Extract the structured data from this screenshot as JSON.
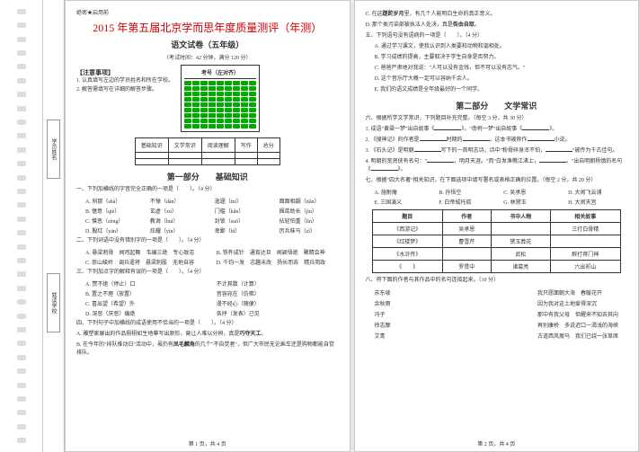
{
  "binding": {
    "holes": 32
  },
  "info": {
    "name_label": "学员姓名",
    "school_label": "就读学校"
  },
  "header": {
    "secret": "绝密★启用前",
    "title": "2015 年第五届北京学而思年度质量测评（年测）",
    "subtitle": "语文试卷（五年级）",
    "meta": "（考试时间：42 分钟，满分 120 分）"
  },
  "notice": {
    "heading": "【注意事项】",
    "lines": [
      "1. 认真填写左边的学员姓名和所在学校。",
      "2. 解答需填写在详细的解答步骤。"
    ]
  },
  "exam_no": {
    "title": "考号（左对齐）"
  },
  "score": {
    "rows": [
      [
        "基础知识",
        "文学常识",
        "阅读理解",
        "写作",
        "总分"
      ],
      [
        "",
        "",
        "",
        "",
        ""
      ],
      [
        "",
        "",
        "",
        "",
        ""
      ]
    ]
  },
  "p1": {
    "title": "第一部分　　基础知识",
    "q1": {
      "stem": "一、下列加横线的字音完全正确的一项是（　　）。（4 分）",
      "opts": [
        "A. 刹那（shà）",
        "不惮（dàn）",
        "迤逦（mí）",
        "面面相觑（tiǎn）",
        "B. 惬意（qiè）",
        "玄虚（xū）",
        "门槛（kǎn）",
        "揠苗助长（jìn）",
        "C. 憎恶（zèng）",
        "教诲（huì）",
        "封锁（suǒ）",
        "拈轻怕重（lín）",
        "D. 殷红（yān）",
        "炫耀（yìn）",
        "卑鄙（bǐ）",
        "厉兵秣马（zǐ）"
      ]
    },
    "q2": {
      "stem": "二、下列词语中没有错别字的一项是（　　）。（4 分）",
      "opts": [
        "A. 悬梁刺骨　闻鸡起舞　韦编三绝　专心致志",
        "B. 铁杵成针　通宵达旦　闻颖悟绝　聚精会神",
        "C. 崇山峻岭　调兵遣将　悬梁刺股　无地自容",
        "D. 千钧一发　志趣未改　扬长而去　精兵简政"
      ]
    },
    "q3": {
      "stem": "三、下列加点字的解释有误的一项是（　　）。（4 分）",
      "opts": [
        "A. 赞不绝（停止）口",
        "不计其数（计算）",
        "B. 置之不理（放置）",
        "音容宛在（仿佛）",
        "C. 喜出望（希望）外",
        "漫不经心（随便）",
        "D. 深恶（厌恶）痛绝",
        "各抒（发表）己见"
      ]
    },
    "q4": {
      "stem": "四、下列句子中加横线的成语使用不恰当的一项是（　　）。（4 分）",
      "opts": [
        "A. 雕塑家展出的作品栩栩如生地摹写出原形，竟让人难以分辨，真是<b>巧夺天工</b>。",
        "B. 在今年的\"排队推动日\"活动中，虽仍有<b>凤毛麟角</b>的几个\"不自觉者\"，但广大市民无论乘车还是购物都能自觉排队。"
      ]
    }
  },
  "p2": {
    "q4c": [
      "C. 在这<b>蹉跎岁月</b>里，有几个人能明白生命的真正意义。",
      "D. 那个类污染部被执法人处决，真是<b>咎由自取</b>。"
    ],
    "q5": {
      "stem": "五、下列语句没有语病的一项是（　　）。（4 分）",
      "opts": [
        "A. 通过学习课文，使我认识到人类要和动物和谐相处。",
        "B. 学习成绩的提高，主要取决于学生自身是否努力。",
        "C. 爸爸严肃地对我说：\"人可以没有金钱，但不可以没有志气。\"",
        "D. 这个音乐厅大概一定可以容纳千余人。",
        "E. 我们的语文成绩是全年级最好的一个同学。"
      ]
    },
    "s2": {
      "title": "第二部分　　文学常识"
    },
    "q6": {
      "stem": "六、根据所学文学常识，下列题目补充完整。（每空 3 分，共 30 分）",
      "items": [
        "1. 成语\"黄粱一梦\"出自故事《＿＿＿＿》。\"南柯一梦\"出自故事《＿＿＿＿》。",
        "2. 《搜神记》的作者是＿＿＿＿时期的＿＿＿＿，这本书被称作＿＿＿＿小说。",
        "3. 《石头记》是明朝＿＿＿＿写下的一首明志诗，诗中\"粉骨碎身浑不怕，＿＿＿＿\"被传为千古佳句。",
        "4. 明朝的宽贤侠有名句：\"＿＿＿＿＿＿＿＿＿＿，明月天涯。\"而\"白发渔樵江渚上，＿＿＿＿＿＿＿＿＿＿。\"出自明朝杨慎的名句《＿＿＿＿》。"
      ]
    },
    "q7": {
      "stem": "七、根据\"四大名著\"相关知识，在下面选项中填写署名或表格正确的位置。（每空 2 分，共 20 分）",
      "bank": [
        "A. 施耐庵",
        "B. 孙悟空",
        "C. 吴承恩",
        "D. 大闹飞云浦",
        "E. 三国演义",
        "F. 白帝城托孤",
        "G. 林黛玉",
        "H. 大闹天宫"
      ],
      "table": {
        "headers": [
          "题目",
          "作者",
          "书中人物",
          "相关故事"
        ],
        "rows": [
          [
            "《西游记》",
            "吴承恩",
            "",
            "三打白骨精"
          ],
          [
            "《红楼梦》",
            "曹雪芹",
            "黛玉葬花",
            ""
          ],
          [
            "《水浒传》",
            "",
            "武松",
            "醉打蒋门神"
          ],
          [
            "《　　》",
            "罗贯中",
            "诸葛亮",
            "六出祁山"
          ]
        ]
      }
    },
    "q8": {
      "stem": "八、将下面的作者与其作品中的名句连接起来。（10 分）",
      "left": [
        "苏东坡",
        "余秋雨",
        "冯子",
        "徐志摩",
        "艾青"
      ],
      "right": [
        "我只愿面朝大海　春暖花开",
        "因为我对这土地爱得深沉",
        "那中有我父母　但醒来不知去其向",
        "再别康桥　多说迟口一渴浅的海峡",
        "古道西风瘦马　我们已绕一张草席"
      ]
    }
  },
  "footer": {
    "p1": "第 1 页，共 4 页",
    "p2": "第 2 页，共 4 页"
  }
}
